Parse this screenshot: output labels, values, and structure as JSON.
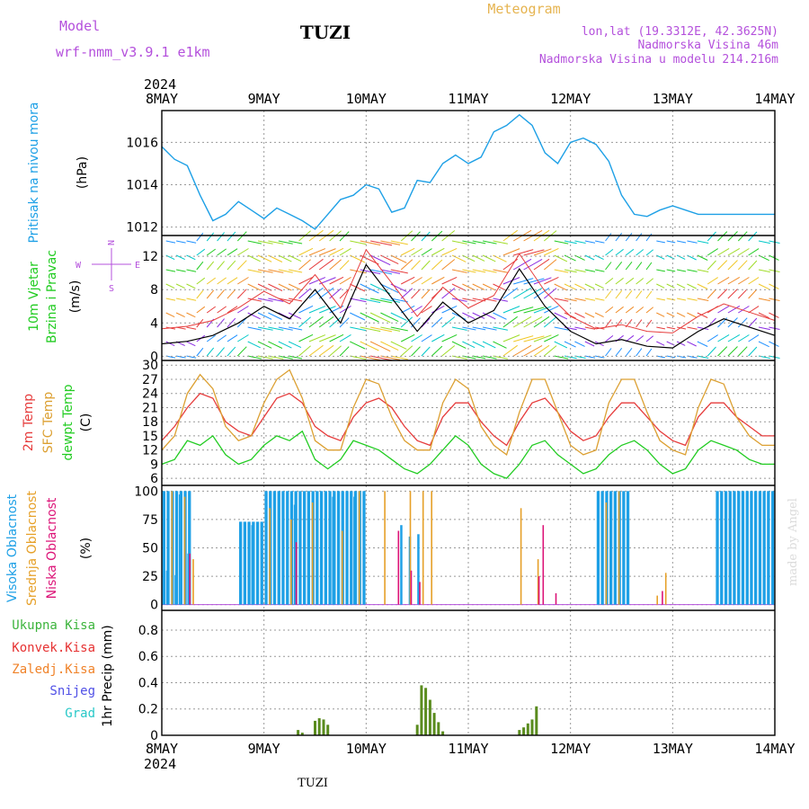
{
  "header": {
    "model_label": "Model",
    "model_name": "wrf-nmm_v3.9.1 e1km",
    "station": "TUZI",
    "chart_title": "Meteogram",
    "lonlat": "lon,lat (19.3312E, 42.3625N)",
    "altitude": "Nadmorska Visina 46m",
    "model_altitude": "Nadmorska Visina u modelu 214.216m",
    "year_top": "2024",
    "year_bottom": "2024",
    "footer_station": "TUZI",
    "credit": "made by Angel"
  },
  "colors": {
    "pressure": "#1ea0e6",
    "temp2m": "#e63c3c",
    "sfc": "#dca032",
    "dewpt": "#22cc22",
    "high_cloud": "#1ea0e6",
    "mid_cloud": "#e6a028",
    "low_cloud": "#dc1478",
    "precip_total": "#3cb43c",
    "precip_conv": "#e63232",
    "precip_frozen": "#f08228",
    "precip_snow": "#5050e6",
    "precip_graupel": "#28c8c8",
    "purple": "#b450dc",
    "gold": "#e6b450"
  },
  "chart_data": [
    {
      "type": "line",
      "panel": "pressure",
      "ylabel_outer": "Pritisak na nivou mora",
      "ylabel_unit": "(hPa)",
      "x_ticks": [
        "8MAY",
        "9MAY",
        "10MAY",
        "11MAY",
        "12MAY",
        "13MAY",
        "14MAY"
      ],
      "y_ticks": [
        "1012",
        "1014",
        "1016"
      ],
      "ylim": [
        1011.6,
        1017.5
      ],
      "x_hours": [
        0,
        3,
        6,
        9,
        12,
        15,
        18,
        21,
        24,
        27,
        30,
        33,
        36,
        39,
        42,
        45,
        48,
        51,
        54,
        57,
        60,
        63,
        66,
        69,
        72,
        75,
        78,
        81,
        84,
        87,
        90,
        93,
        96,
        99,
        102,
        105,
        108,
        111,
        114,
        117,
        120,
        123,
        126,
        129,
        132,
        135,
        138,
        141,
        144
      ],
      "values": [
        1015.8,
        1015.2,
        1014.9,
        1013.5,
        1012.3,
        1012.6,
        1013.2,
        1012.8,
        1012.4,
        1012.9,
        1012.6,
        1012.3,
        1011.9,
        1012.6,
        1013.3,
        1013.5,
        1014.0,
        1013.8,
        1012.7,
        1012.9,
        1014.2,
        1014.1,
        1015.0,
        1015.4,
        1015.0,
        1015.3,
        1016.5,
        1016.8,
        1017.3,
        1016.8,
        1015.5,
        1015.0,
        1016.0,
        1016.2,
        1015.9,
        1015.1,
        1013.5,
        1012.6,
        1012.5,
        1012.8,
        1013.0,
        1012.8,
        1012.6,
        1012.6,
        1012.6,
        1012.6,
        1012.6,
        1012.6,
        1012.6
      ]
    },
    {
      "type": "line",
      "panel": "wind",
      "ylabel_outer": "10m Vjetar",
      "ylabel_outer2": "Brzina i Pravac",
      "ylabel_unit": "(m/s)",
      "compass": [
        "N",
        "E",
        "S",
        "W"
      ],
      "y_ticks": [
        "0",
        "4",
        "8",
        "12"
      ],
      "ylim": [
        -0.5,
        14.5
      ],
      "x_hours": [
        0,
        6,
        12,
        18,
        24,
        30,
        36,
        42,
        48,
        54,
        60,
        66,
        72,
        78,
        84,
        90,
        96,
        102,
        108,
        114,
        120,
        126,
        132,
        138,
        144
      ],
      "values": [
        1.5,
        1.8,
        2.5,
        4.0,
        6.0,
        4.5,
        8.0,
        4.0,
        11.0,
        7.0,
        3.0,
        6.5,
        4.0,
        5.5,
        10.5,
        6.0,
        3.0,
        1.5,
        2.0,
        1.2,
        1.0,
        3.0,
        4.5,
        3.5,
        2.5
      ]
    },
    {
      "type": "line",
      "panel": "temperature",
      "ylabel_outer": [
        "2m Temp",
        "SFC Temp",
        "dewpt Temp"
      ],
      "ylabel_unit": "(C)",
      "y_ticks": [
        "6",
        "9",
        "12",
        "15",
        "18",
        "21",
        "24",
        "27",
        "30"
      ],
      "ylim": [
        4.5,
        31
      ],
      "x_hours": [
        0,
        3,
        6,
        9,
        12,
        15,
        18,
        21,
        24,
        27,
        30,
        33,
        36,
        39,
        42,
        45,
        48,
        51,
        54,
        57,
        60,
        63,
        66,
        69,
        72,
        75,
        78,
        81,
        84,
        87,
        90,
        93,
        96,
        99,
        102,
        105,
        108,
        111,
        114,
        117,
        120,
        123,
        126,
        129,
        132,
        135,
        138,
        141,
        144
      ],
      "series": [
        {
          "name": "2m Temp",
          "values": [
            14,
            17,
            21,
            24,
            23,
            18,
            16,
            15,
            19,
            23,
            24,
            22,
            17,
            15,
            14,
            19,
            22,
            23,
            21,
            17,
            14,
            13,
            19,
            22,
            22,
            18,
            15,
            13,
            18,
            22,
            23,
            20,
            16,
            14,
            15,
            19,
            22,
            22,
            19,
            16,
            14,
            13,
            19,
            22,
            22,
            19,
            17,
            15,
            15
          ]
        },
        {
          "name": "SFC Temp",
          "values": [
            12,
            15,
            24,
            28,
            25,
            17,
            14,
            15,
            22,
            27,
            29,
            23,
            14,
            12,
            12,
            21,
            27,
            26,
            19,
            14,
            12,
            12,
            22,
            27,
            25,
            17,
            13,
            11,
            20,
            27,
            27,
            20,
            13,
            11,
            12,
            22,
            27,
            27,
            20,
            14,
            12,
            11,
            21,
            27,
            26,
            19,
            15,
            13,
            13
          ]
        },
        {
          "name": "dewpt Temp",
          "values": [
            9,
            10,
            14,
            13,
            15,
            11,
            9,
            10,
            13,
            15,
            14,
            16,
            10,
            8,
            10,
            14,
            13,
            12,
            10,
            8,
            7,
            9,
            12,
            15,
            13,
            9,
            7,
            6,
            9,
            13,
            14,
            11,
            9,
            7,
            8,
            11,
            13,
            14,
            12,
            9,
            7,
            8,
            12,
            14,
            13,
            12,
            10,
            9,
            9
          ]
        }
      ]
    },
    {
      "type": "bar",
      "panel": "clouds",
      "ylabel_outer": [
        "Visoka Oblacnost",
        "Srednja Oblacnost",
        "Niska Oblacnost"
      ],
      "ylabel_unit": "(%)",
      "y_ticks": [
        "0",
        "25",
        "50",
        "75",
        "100"
      ],
      "ylim": [
        -5,
        105
      ],
      "high_segments": [
        [
          0,
          7,
          100
        ],
        [
          18,
          24,
          73
        ],
        [
          24,
          36,
          100
        ],
        [
          36,
          48,
          100
        ],
        [
          102,
          110,
          100
        ],
        [
          130,
          144,
          100
        ]
      ],
      "high_spikes": [
        [
          1,
          30
        ],
        [
          3,
          26
        ],
        [
          4,
          97
        ],
        [
          6,
          45
        ],
        [
          21,
          70
        ],
        [
          31,
          88
        ],
        [
          40,
          95
        ],
        [
          45,
          95
        ],
        [
          56,
          70
        ],
        [
          58,
          60
        ],
        [
          60,
          62
        ]
      ],
      "mid_spikes": [
        [
          2,
          100
        ],
        [
          5,
          95
        ],
        [
          7,
          40
        ],
        [
          25,
          85
        ],
        [
          30,
          75
        ],
        [
          35,
          90
        ],
        [
          42,
          65
        ],
        [
          46,
          100
        ],
        [
          52,
          100
        ],
        [
          58,
          100
        ],
        [
          61,
          100
        ],
        [
          63,
          100
        ],
        [
          84,
          85
        ],
        [
          88,
          40
        ],
        [
          104,
          90
        ],
        [
          107,
          100
        ],
        [
          116,
          8
        ],
        [
          118,
          28
        ]
      ],
      "low_spikes": [
        [
          6,
          45
        ],
        [
          31,
          55
        ],
        [
          55,
          65
        ],
        [
          58,
          30
        ],
        [
          60,
          20
        ],
        [
          88,
          25
        ],
        [
          89,
          70
        ],
        [
          92,
          10
        ],
        [
          117,
          12
        ]
      ]
    },
    {
      "type": "bar",
      "panel": "precip",
      "ylabel_outer": [
        "Ukupna Kisa",
        "Konvek.Kisa",
        "Zaledj.Kisa",
        "Snijeg",
        "Grad"
      ],
      "ylabel_unit": "1hr Precip (mm)",
      "y_ticks": [
        "0",
        "0.2",
        "0.4",
        "0.6",
        "0.8"
      ],
      "ylim": [
        0,
        0.95
      ],
      "x_hours": [
        32,
        33,
        36,
        37,
        38,
        39,
        60,
        61,
        62,
        63,
        64,
        65,
        66,
        84,
        85,
        86,
        87,
        88
      ],
      "values": [
        0.04,
        0.02,
        0.11,
        0.13,
        0.12,
        0.08,
        0.08,
        0.38,
        0.36,
        0.27,
        0.17,
        0.1,
        0.03,
        0.04,
        0.06,
        0.09,
        0.12,
        0.22
      ]
    }
  ]
}
